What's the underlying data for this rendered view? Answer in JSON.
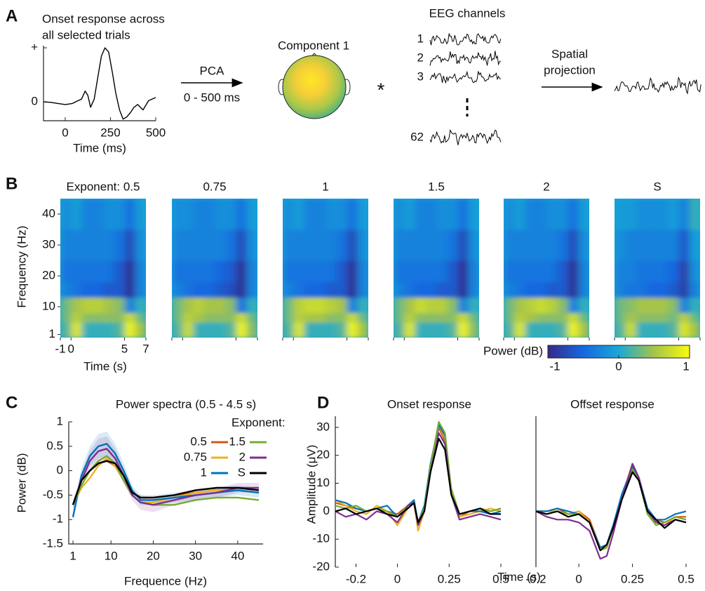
{
  "panel_labels": [
    "A",
    "B",
    "C",
    "D"
  ],
  "diagram": {
    "pca_label": "PCA",
    "pca_window": "0 - 500 ms",
    "component": "Component 1",
    "operator": "*",
    "eeg_title": "EEG channels",
    "channels": [
      "1",
      "2",
      "3",
      "62"
    ],
    "projection": [
      "Spatial",
      "projection"
    ]
  },
  "chart_data": [
    {
      "type": "line",
      "title": [
        "Onset response across",
        "all selected trials"
      ],
      "xlabel": "Time (ms)",
      "x": [
        -120,
        -80,
        -40,
        0,
        40,
        70,
        90,
        110,
        125,
        140,
        160,
        180,
        200,
        220,
        240,
        260,
        280,
        300,
        320,
        340,
        360,
        380,
        400,
        430,
        460,
        500
      ],
      "series": [
        {
          "color": "#000000",
          "values": [
            0,
            -0.01,
            -0.03,
            -0.05,
            -0.03,
            0.02,
            0.05,
            0.2,
            0.12,
            -0.1,
            0.05,
            0.45,
            0.85,
            1.0,
            0.92,
            0.55,
            0.15,
            -0.15,
            -0.32,
            -0.28,
            -0.2,
            -0.1,
            -0.05,
            -0.15,
            0.02,
            0.08
          ]
        }
      ],
      "xlim": [
        -120,
        500
      ],
      "ylim": [
        -0.35,
        1.04
      ],
      "xticks": [
        0,
        250,
        500
      ],
      "yticks": [
        {
          "value": 1,
          "label": "+"
        },
        0
      ]
    },
    {
      "type": "heatmap",
      "titles": [
        "Exponent: 0.5",
        "0.75",
        "1",
        "1.5",
        "2",
        "S"
      ],
      "xlabel": "Time (s)",
      "ylabel": "Frequency (Hz)",
      "x_bins": [
        -1,
        0,
        1,
        2,
        3,
        4,
        5,
        6,
        7
      ],
      "y_bins": [
        0,
        5,
        8,
        13,
        18,
        25,
        35,
        45
      ],
      "xlim": [
        -1,
        7
      ],
      "ylim": [
        0,
        45
      ],
      "xticks": [
        -1,
        0,
        5,
        7
      ],
      "yticks": [
        1,
        10,
        20,
        30,
        40
      ],
      "colormap": [
        "#352a87",
        "#1668e0",
        "#1aa8d6",
        "#a6c44a",
        "#f9fb0e"
      ],
      "colorbar": {
        "label": "Power (dB)",
        "clim": [
          -1,
          1
        ],
        "ticks": [
          -1,
          0,
          1
        ]
      },
      "z": [
        [
          [
            0.2,
            0.8,
            0.1,
            0.1,
            0.1,
            0.2,
            0.9,
            0.5
          ],
          [
            0.3,
            0.6,
            0.4,
            0.4,
            0.4,
            0.4,
            0.7,
            0.3
          ],
          [
            0.3,
            0.5,
            0.6,
            0.6,
            0.5,
            0.4,
            -0.3,
            0.1
          ],
          [
            -0.3,
            -0.4,
            -0.5,
            -0.5,
            -0.6,
            -0.6,
            -0.9,
            -0.3
          ],
          [
            -0.4,
            -0.4,
            -0.4,
            -0.4,
            -0.4,
            -0.6,
            -0.9,
            -0.3
          ],
          [
            -0.3,
            -0.3,
            -0.3,
            -0.3,
            -0.3,
            -0.4,
            -0.7,
            -0.2
          ],
          [
            -0.2,
            -0.1,
            -0.3,
            -0.3,
            -0.2,
            -0.2,
            -0.4,
            -0.1
          ]
        ],
        [
          [
            0.2,
            0.7,
            0.1,
            0.1,
            0.1,
            0.2,
            0.9,
            0.4
          ],
          [
            0.3,
            0.6,
            0.5,
            0.4,
            0.4,
            0.4,
            0.7,
            0.3
          ],
          [
            0.3,
            0.5,
            0.6,
            0.5,
            0.5,
            0.4,
            -0.4,
            0.1
          ],
          [
            -0.3,
            -0.4,
            -0.5,
            -0.5,
            -0.6,
            -0.7,
            -0.9,
            -0.3
          ],
          [
            -0.4,
            -0.4,
            -0.4,
            -0.4,
            -0.5,
            -0.6,
            -0.9,
            -0.3
          ],
          [
            -0.3,
            -0.3,
            -0.3,
            -0.3,
            -0.3,
            -0.4,
            -0.7,
            -0.2
          ],
          [
            -0.2,
            -0.2,
            -0.3,
            -0.3,
            -0.2,
            -0.2,
            -0.4,
            -0.1
          ]
        ],
        [
          [
            0.2,
            0.8,
            0.1,
            0.1,
            0.1,
            0.2,
            0.9,
            0.5
          ],
          [
            0.3,
            0.6,
            0.5,
            0.5,
            0.4,
            0.4,
            0.7,
            0.3
          ],
          [
            0.3,
            0.6,
            0.7,
            0.7,
            0.6,
            0.5,
            -0.3,
            0.1
          ],
          [
            -0.3,
            -0.4,
            -0.5,
            -0.5,
            -0.6,
            -0.6,
            -0.9,
            -0.3
          ],
          [
            -0.4,
            -0.4,
            -0.4,
            -0.4,
            -0.4,
            -0.6,
            -0.9,
            -0.3
          ],
          [
            -0.3,
            -0.3,
            -0.3,
            -0.3,
            -0.3,
            -0.4,
            -0.7,
            -0.2
          ],
          [
            -0.2,
            -0.1,
            -0.3,
            -0.3,
            -0.2,
            -0.2,
            -0.4,
            -0.1
          ]
        ],
        [
          [
            0.2,
            0.8,
            0.1,
            0.1,
            0.1,
            0.2,
            0.9,
            0.4
          ],
          [
            0.3,
            0.6,
            0.4,
            0.4,
            0.4,
            0.4,
            0.7,
            0.3
          ],
          [
            0.3,
            0.5,
            0.7,
            0.6,
            0.6,
            0.4,
            -0.3,
            0.1
          ],
          [
            -0.3,
            -0.4,
            -0.5,
            -0.5,
            -0.6,
            -0.6,
            -0.9,
            -0.3
          ],
          [
            -0.4,
            -0.4,
            -0.4,
            -0.4,
            -0.4,
            -0.6,
            -0.9,
            -0.3
          ],
          [
            -0.3,
            -0.3,
            -0.3,
            -0.3,
            -0.3,
            -0.4,
            -0.7,
            -0.2
          ],
          [
            -0.2,
            -0.1,
            -0.3,
            -0.3,
            -0.2,
            -0.2,
            -0.4,
            -0.1
          ]
        ],
        [
          [
            0.2,
            0.8,
            0.1,
            0.1,
            0.1,
            0.2,
            0.9,
            0.5
          ],
          [
            0.3,
            0.6,
            0.5,
            0.4,
            0.4,
            0.4,
            0.7,
            0.3
          ],
          [
            0.3,
            0.5,
            0.6,
            0.7,
            0.6,
            0.4,
            -0.3,
            0.1
          ],
          [
            -0.3,
            -0.4,
            -0.5,
            -0.5,
            -0.6,
            -0.6,
            -0.9,
            -0.3
          ],
          [
            -0.4,
            -0.4,
            -0.4,
            -0.4,
            -0.4,
            -0.6,
            -0.9,
            -0.3
          ],
          [
            -0.3,
            -0.3,
            -0.3,
            -0.3,
            -0.3,
            -0.4,
            -0.7,
            -0.2
          ],
          [
            -0.2,
            -0.1,
            -0.3,
            -0.3,
            -0.2,
            -0.2,
            -0.4,
            -0.1
          ]
        ],
        [
          [
            0.2,
            0.7,
            0.1,
            0.1,
            0.1,
            0.2,
            0.8,
            0.5
          ],
          [
            0.3,
            0.5,
            0.4,
            0.4,
            0.4,
            0.3,
            0.6,
            0.3
          ],
          [
            0.3,
            0.4,
            0.5,
            0.5,
            0.5,
            0.4,
            -0.3,
            0.1
          ],
          [
            -0.3,
            -0.4,
            -0.4,
            -0.5,
            -0.5,
            -0.6,
            -0.8,
            -0.3
          ],
          [
            -0.3,
            -0.3,
            -0.4,
            -0.4,
            -0.4,
            -0.5,
            -0.8,
            -0.2
          ],
          [
            -0.2,
            -0.3,
            -0.3,
            -0.3,
            -0.3,
            -0.3,
            -0.6,
            -0.1
          ],
          [
            -0.1,
            -0.1,
            -0.2,
            -0.2,
            -0.2,
            -0.1,
            -0.3,
            0.1
          ]
        ]
      ]
    },
    {
      "type": "line",
      "title": "Power spectra (0.5 - 4.5 s)",
      "xlabel": "Frequence (Hz)",
      "ylabel": "Power (dB)",
      "legend_title": "Exponent:",
      "x": [
        1,
        3,
        5,
        7,
        9,
        11,
        13,
        15,
        17,
        20,
        25,
        30,
        35,
        40,
        45
      ],
      "xlim": [
        0,
        46
      ],
      "ylim": [
        -1.5,
        1
      ],
      "xticks": [
        1,
        10,
        20,
        30,
        40
      ],
      "yticks": [
        -1.5,
        -1,
        -0.5,
        0,
        0.5,
        1
      ],
      "series": [
        {
          "name": "0.5",
          "color": "#d95319",
          "values": [
            -0.7,
            -0.2,
            0.0,
            0.15,
            0.2,
            0.1,
            -0.2,
            -0.45,
            -0.55,
            -0.55,
            -0.5,
            -0.45,
            -0.4,
            -0.4,
            -0.45
          ]
        },
        {
          "name": "0.75",
          "color": "#edb120",
          "values": [
            -0.7,
            -0.35,
            -0.15,
            0.1,
            0.25,
            0.1,
            -0.2,
            -0.5,
            -0.65,
            -0.65,
            -0.55,
            -0.45,
            -0.4,
            -0.4,
            -0.45
          ]
        },
        {
          "name": "1",
          "color": "#0072bd",
          "values": [
            -0.95,
            -0.1,
            0.3,
            0.5,
            0.55,
            0.35,
            0.0,
            -0.4,
            -0.6,
            -0.6,
            -0.55,
            -0.5,
            -0.45,
            -0.4,
            -0.45
          ],
          "errors": [
            0.1,
            0.15,
            0.2,
            0.25,
            0.25,
            0.2,
            0.15,
            0.1,
            0.1,
            0.1,
            0.1,
            0.1,
            0.1,
            0.1,
            0.1
          ]
        },
        {
          "name": "1.5",
          "color": "#77ac30",
          "values": [
            -0.7,
            -0.3,
            0.0,
            0.2,
            0.3,
            0.15,
            -0.2,
            -0.5,
            -0.65,
            -0.7,
            -0.7,
            -0.6,
            -0.55,
            -0.55,
            -0.6
          ]
        },
        {
          "name": "2",
          "color": "#7e2f8e",
          "values": [
            -0.7,
            -0.2,
            0.2,
            0.4,
            0.45,
            0.25,
            -0.1,
            -0.5,
            -0.65,
            -0.7,
            -0.6,
            -0.5,
            -0.45,
            -0.35,
            -0.35
          ],
          "errors": [
            0.1,
            0.15,
            0.2,
            0.25,
            0.25,
            0.2,
            0.15,
            0.1,
            0.15,
            0.15,
            0.1,
            0.1,
            0.1,
            0.1,
            0.1
          ]
        },
        {
          "name": "S",
          "color": "#000000",
          "values": [
            -0.7,
            -0.2,
            0.0,
            0.15,
            0.2,
            0.15,
            -0.1,
            -0.45,
            -0.55,
            -0.55,
            -0.5,
            -0.4,
            -0.35,
            -0.35,
            -0.4
          ]
        }
      ]
    },
    {
      "type": "line",
      "title": "Onset response",
      "ylabel": "Amplitude (μV)",
      "x": [
        -0.3,
        -0.25,
        -0.2,
        -0.15,
        -0.1,
        -0.05,
        0,
        0.05,
        0.08,
        0.1,
        0.13,
        0.16,
        0.2,
        0.23,
        0.26,
        0.3,
        0.35,
        0.4,
        0.45,
        0.5
      ],
      "xlim": [
        -0.3,
        0.5
      ],
      "ylim": [
        -20,
        34
      ],
      "xticks": [
        -0.2,
        0,
        0.25,
        0.5
      ],
      "yticks": [
        -20,
        -10,
        0,
        10,
        20,
        30
      ],
      "series": [
        {
          "color": "#d95319",
          "values": [
            3,
            2,
            1,
            0,
            1,
            0,
            -1,
            2,
            4,
            -5,
            0,
            15,
            30,
            25,
            8,
            -2,
            0,
            1,
            0,
            1
          ]
        },
        {
          "color": "#edb120",
          "values": [
            4,
            2,
            0,
            -1,
            2,
            0,
            -5,
            1,
            3,
            -7,
            0,
            16,
            31,
            26,
            7,
            -2,
            -1,
            0,
            1,
            0
          ]
        },
        {
          "color": "#0072bd",
          "values": [
            4,
            3,
            1,
            0,
            1,
            2,
            -2,
            2,
            4,
            -4,
            2,
            17,
            31,
            27,
            8,
            -1,
            0,
            0,
            -1,
            0
          ]
        },
        {
          "color": "#77ac30",
          "values": [
            2,
            1,
            2,
            0,
            1,
            0,
            -2,
            2,
            3,
            -4,
            1,
            16,
            32,
            28,
            8,
            -1,
            0,
            1,
            0,
            1
          ]
        },
        {
          "color": "#7e2f8e",
          "values": [
            0,
            -2,
            -1,
            -3,
            0,
            -1,
            -4,
            2,
            3,
            -5,
            0,
            14,
            28,
            24,
            6,
            -3,
            -2,
            -1,
            -2,
            -3
          ]
        },
        {
          "color": "#000000",
          "values": [
            0,
            1,
            -1,
            0,
            1,
            -1,
            -2,
            1,
            3,
            -4,
            0,
            14,
            26,
            22,
            6,
            -1,
            0,
            1,
            -1,
            -1
          ]
        }
      ]
    },
    {
      "type": "line",
      "title": "Offset response",
      "xlabel": "Time (s)",
      "x": [
        -0.2,
        -0.15,
        -0.1,
        -0.05,
        0,
        0.05,
        0.1,
        0.13,
        0.16,
        0.2,
        0.25,
        0.28,
        0.32,
        0.36,
        0.4,
        0.45,
        0.5
      ],
      "xlim": [
        -0.2,
        0.5
      ],
      "ylim": [
        -20,
        34
      ],
      "xticks": [
        -0.2,
        0,
        0.25,
        0.5
      ],
      "series": [
        {
          "color": "#d95319",
          "values": [
            0,
            0,
            1,
            -1,
            0,
            -3,
            -13,
            -12,
            -5,
            5,
            17,
            12,
            0,
            -3,
            -4,
            -2,
            -2
          ]
        },
        {
          "color": "#edb120",
          "values": [
            0,
            0,
            0,
            -1,
            0,
            -4,
            -14,
            -13,
            -6,
            5,
            16,
            11,
            0,
            -4,
            -5,
            -2,
            -3
          ]
        },
        {
          "color": "#0072bd",
          "values": [
            0,
            0,
            1,
            0,
            -1,
            -4,
            -13,
            -12,
            -5,
            6,
            16,
            12,
            1,
            -3,
            -3,
            -1,
            0
          ]
        },
        {
          "color": "#77ac30",
          "values": [
            0,
            -1,
            0,
            -1,
            -1,
            -4,
            -14,
            -13,
            -6,
            4,
            15,
            11,
            -1,
            -5,
            -4,
            -2,
            -3
          ]
        },
        {
          "color": "#7e2f8e",
          "values": [
            0,
            -2,
            -3,
            -3,
            -4,
            -7,
            -17,
            -16,
            -8,
            4,
            17,
            12,
            0,
            -4,
            -5,
            -3,
            -4
          ]
        },
        {
          "color": "#000000",
          "values": [
            0,
            -1,
            0,
            -2,
            -1,
            -4,
            -14,
            -12,
            -6,
            4,
            14,
            11,
            0,
            -3,
            -6,
            -3,
            -4
          ]
        }
      ]
    }
  ]
}
